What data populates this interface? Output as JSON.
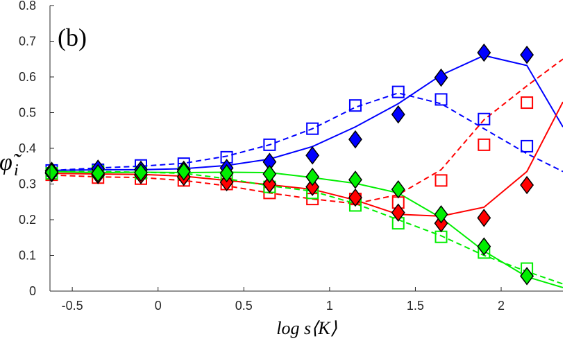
{
  "chart_data": {
    "type": "line",
    "title": "",
    "panel_label": "(b)",
    "xlabel": "log s⟨K⟩",
    "ylabel": "φ̃",
    "ylabel_subscript": "i",
    "xlim": [
      -0.63,
      2.36
    ],
    "ylim": [
      0,
      0.8
    ],
    "xticks": [
      -0.5,
      0,
      0.5,
      1,
      1.5,
      2
    ],
    "xtick_labels": [
      "-0.5",
      "0",
      "0.5",
      "1",
      "1.5",
      "2"
    ],
    "yticks": [
      0,
      0.1,
      0.2,
      0.3,
      0.4,
      0.5,
      0.6,
      0.7,
      0.8
    ],
    "ytick_labels": [
      "0",
      "0.1",
      "0.2",
      "0.3",
      "0.4",
      "0.5",
      "0.6",
      "0.7",
      "0.8"
    ],
    "colors": {
      "blue": "#0000ff",
      "red": "#ff0000",
      "green": "#00ee00",
      "axis": "#262626"
    },
    "series": [
      {
        "name": "blue-solid-line",
        "color": "#0000ff",
        "style": "solid",
        "marker": "none",
        "x": [
          -0.62,
          -0.35,
          -0.1,
          0.15,
          0.4,
          0.65,
          0.9,
          1.15,
          1.4,
          1.65,
          1.9,
          2.15,
          2.36
        ],
        "y": [
          0.338,
          0.34,
          0.34,
          0.343,
          0.352,
          0.37,
          0.405,
          0.46,
          0.525,
          0.605,
          0.66,
          0.632,
          0.46
        ]
      },
      {
        "name": "blue-dashed-line",
        "color": "#0000ff",
        "style": "dashed",
        "marker": "none",
        "x": [
          -0.62,
          -0.35,
          -0.1,
          0.15,
          0.4,
          0.65,
          0.9,
          1.15,
          1.4,
          1.65,
          1.9,
          2.15,
          2.36
        ],
        "y": [
          0.338,
          0.345,
          0.35,
          0.358,
          0.378,
          0.41,
          0.455,
          0.515,
          0.555,
          0.525,
          0.455,
          0.385,
          0.335
        ]
      },
      {
        "name": "red-solid-line",
        "color": "#ff0000",
        "style": "solid",
        "marker": "none",
        "x": [
          -0.62,
          -0.35,
          -0.1,
          0.15,
          0.4,
          0.65,
          0.9,
          1.15,
          1.4,
          1.65,
          1.9,
          2.15,
          2.36
        ],
        "y": [
          0.33,
          0.328,
          0.327,
          0.322,
          0.31,
          0.298,
          0.285,
          0.255,
          0.215,
          0.21,
          0.235,
          0.335,
          0.53
        ]
      },
      {
        "name": "red-dashed-line",
        "color": "#ff0000",
        "style": "dashed",
        "marker": "none",
        "x": [
          -0.62,
          -0.35,
          -0.1,
          0.15,
          0.4,
          0.65,
          0.9,
          1.15,
          1.4,
          1.65,
          1.9,
          2.15,
          2.36
        ],
        "y": [
          0.325,
          0.32,
          0.318,
          0.31,
          0.295,
          0.275,
          0.258,
          0.245,
          0.27,
          0.34,
          0.48,
          0.575,
          0.65
        ]
      },
      {
        "name": "green-solid-line",
        "color": "#00ee00",
        "style": "solid",
        "marker": "none",
        "x": [
          -0.62,
          -0.35,
          -0.1,
          0.15,
          0.4,
          0.65,
          0.9,
          1.15,
          1.4,
          1.65,
          1.9,
          2.15,
          2.36
        ],
        "y": [
          0.335,
          0.332,
          0.333,
          0.332,
          0.333,
          0.332,
          0.318,
          0.302,
          0.275,
          0.205,
          0.112,
          0.04,
          0.01
        ]
      },
      {
        "name": "green-dashed-line",
        "color": "#00ee00",
        "style": "dashed",
        "marker": "none",
        "x": [
          -0.62,
          -0.35,
          -0.1,
          0.15,
          0.4,
          0.65,
          0.9,
          1.15,
          1.4,
          1.65,
          1.9,
          2.15,
          2.36
        ],
        "y": [
          0.335,
          0.335,
          0.333,
          0.33,
          0.315,
          0.295,
          0.28,
          0.245,
          0.2,
          0.155,
          0.1,
          0.055,
          0.02
        ]
      },
      {
        "name": "blue-diamonds",
        "color": "#0000ff",
        "style": "none",
        "marker": "diamond",
        "x": [
          -0.62,
          -0.35,
          -0.1,
          0.15,
          0.4,
          0.65,
          0.9,
          1.15,
          1.4,
          1.65,
          1.9,
          2.15
        ],
        "y": [
          0.337,
          0.343,
          0.34,
          0.34,
          0.345,
          0.362,
          0.38,
          0.425,
          0.495,
          0.598,
          0.668,
          0.662
        ]
      },
      {
        "name": "red-diamonds",
        "color": "#ff0000",
        "style": "none",
        "marker": "diamond",
        "x": [
          -0.62,
          -0.35,
          -0.1,
          0.15,
          0.4,
          0.65,
          0.9,
          1.15,
          1.4,
          1.65,
          1.9,
          2.15
        ],
        "y": [
          0.33,
          0.325,
          0.325,
          0.32,
          0.305,
          0.3,
          0.292,
          0.262,
          0.22,
          0.19,
          0.205,
          0.297
        ]
      },
      {
        "name": "green-diamonds",
        "color": "#00ee00",
        "style": "none",
        "marker": "diamond",
        "x": [
          -0.62,
          -0.35,
          -0.1,
          0.15,
          0.4,
          0.65,
          0.9,
          1.15,
          1.4,
          1.65,
          1.9,
          2.15
        ],
        "y": [
          0.333,
          0.33,
          0.332,
          0.335,
          0.33,
          0.328,
          0.32,
          0.312,
          0.285,
          0.215,
          0.125,
          0.042
        ]
      },
      {
        "name": "blue-squares",
        "color": "#0000ff",
        "style": "none",
        "marker": "square",
        "x": [
          -0.62,
          -0.35,
          -0.1,
          0.15,
          0.4,
          0.65,
          0.9,
          1.15,
          1.4,
          1.65,
          1.9,
          2.15
        ],
        "y": [
          0.338,
          0.34,
          0.352,
          0.357,
          0.375,
          0.41,
          0.455,
          0.52,
          0.558,
          0.537,
          0.482,
          0.406
        ]
      },
      {
        "name": "red-squares",
        "color": "#ff0000",
        "style": "none",
        "marker": "square",
        "x": [
          -0.62,
          -0.35,
          -0.1,
          0.15,
          0.4,
          0.65,
          0.9,
          1.15,
          1.4,
          1.65,
          1.9,
          2.15
        ],
        "y": [
          0.326,
          0.318,
          0.315,
          0.31,
          0.3,
          0.275,
          0.258,
          0.258,
          0.248,
          0.31,
          0.41,
          0.528
        ]
      },
      {
        "name": "green-squares",
        "color": "#00ee00",
        "style": "none",
        "marker": "square",
        "x": [
          -0.62,
          -0.35,
          -0.1,
          0.15,
          0.4,
          0.65,
          0.9,
          1.15,
          1.4,
          1.65,
          1.9,
          2.15
        ],
        "y": [
          0.33,
          0.335,
          0.33,
          0.33,
          0.318,
          0.292,
          0.275,
          0.24,
          0.19,
          0.152,
          0.108,
          0.063
        ]
      }
    ]
  }
}
